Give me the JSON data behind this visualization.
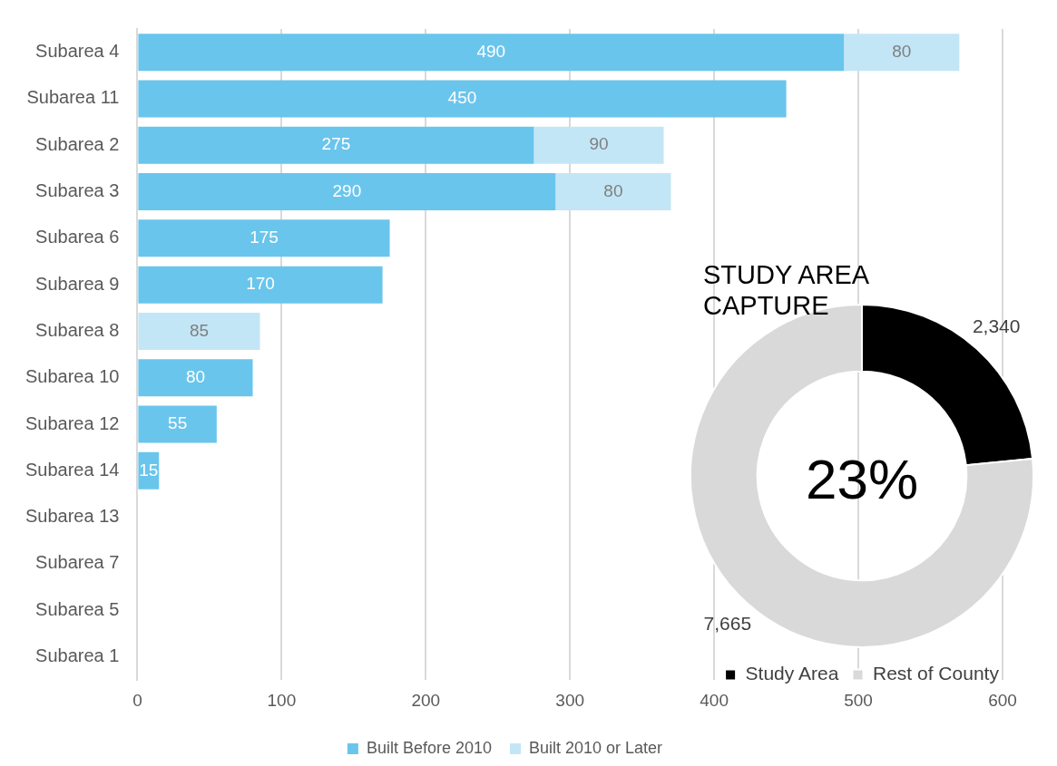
{
  "chart_data": [
    {
      "type": "bar",
      "orientation": "horizontal",
      "stacked": true,
      "categories": [
        "Subarea 4",
        "Subarea 11",
        "Subarea 2",
        "Subarea 3",
        "Subarea 6",
        "Subarea 9",
        "Subarea 8",
        "Subarea 10",
        "Subarea 12",
        "Subarea 14",
        "Subarea 13",
        "Subarea 7",
        "Subarea 5",
        "Subarea 1"
      ],
      "series": [
        {
          "name": "Built Before 2010",
          "color": "#6ac5ec",
          "values": [
            490,
            450,
            275,
            290,
            175,
            170,
            0,
            80,
            55,
            15,
            0,
            0,
            0,
            0
          ],
          "value_labels": [
            "490",
            "450",
            "275",
            "290",
            "175",
            "170",
            null,
            "80",
            "55",
            "15",
            null,
            null,
            null,
            null
          ]
        },
        {
          "name": "Built 2010 or Later",
          "color": "#c3e6f6",
          "values": [
            80,
            0,
            90,
            80,
            0,
            0,
            85,
            0,
            0,
            0,
            0,
            0,
            0,
            0
          ],
          "value_labels": [
            "80",
            null,
            "90",
            "80",
            null,
            null,
            "85",
            null,
            null,
            null,
            null,
            null,
            null,
            null
          ]
        }
      ],
      "xlim": [
        0,
        600
      ],
      "xticks": [
        0,
        100,
        200,
        300,
        400,
        500,
        600
      ],
      "grid": "x",
      "legend": "bottom"
    },
    {
      "type": "donut",
      "title": "STUDY AREA CAPTURE",
      "categories": [
        "Study Area",
        "Rest of County"
      ],
      "values": [
        2340,
        7665
      ],
      "colors": [
        "#000000",
        "#d9d9d9"
      ],
      "value_labels": [
        "2,340",
        "7,665"
      ],
      "annotations": [
        "23%"
      ],
      "legend": "bottom"
    }
  ]
}
